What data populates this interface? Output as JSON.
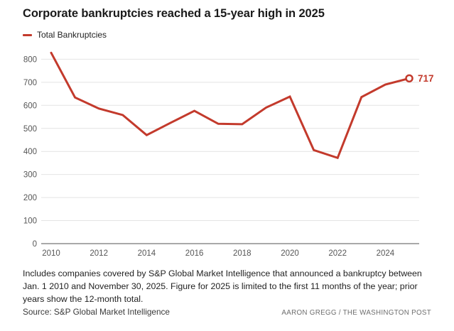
{
  "chart_data": {
    "type": "line",
    "title": "Corporate bankruptcies reached a 15-year high in 2025",
    "x": [
      2010,
      2011,
      2012,
      2013,
      2014,
      2015,
      2016,
      2017,
      2018,
      2019,
      2020,
      2021,
      2022,
      2023,
      2024,
      2025
    ],
    "series": [
      {
        "name": "Total Bankruptcies",
        "color": "#c33a2c",
        "values": [
          828,
          634,
          586,
          558,
          471,
          524,
          576,
          520,
          518,
          590,
          638,
          406,
          372,
          636,
          690,
          717
        ]
      }
    ],
    "end_point_label": "717",
    "ylim": [
      0,
      800
    ],
    "yticks": [
      0,
      100,
      200,
      300,
      400,
      500,
      600,
      700,
      800
    ],
    "xticks": [
      2010,
      2012,
      2014,
      2016,
      2018,
      2020,
      2022,
      2024
    ],
    "grid": "horizontal",
    "legend_position": "top-left"
  },
  "colors": {
    "accent_red": "#c33a2c",
    "grid_line": "#e4e4e4",
    "axis_line": "#a9a9a9",
    "tick_label": "#565656"
  },
  "footer": {
    "note": "Includes companies covered by S&P Global Market Intelligence that announced a bankruptcy between Jan. 1 2010 and November 30, 2025. Figure for 2025 is limited to the first 11 months of the year; prior years show the 12-month total.",
    "source": "Source: S&P Global Market Intelligence",
    "credit": "AARON GREGG / THE WASHINGTON POST"
  }
}
